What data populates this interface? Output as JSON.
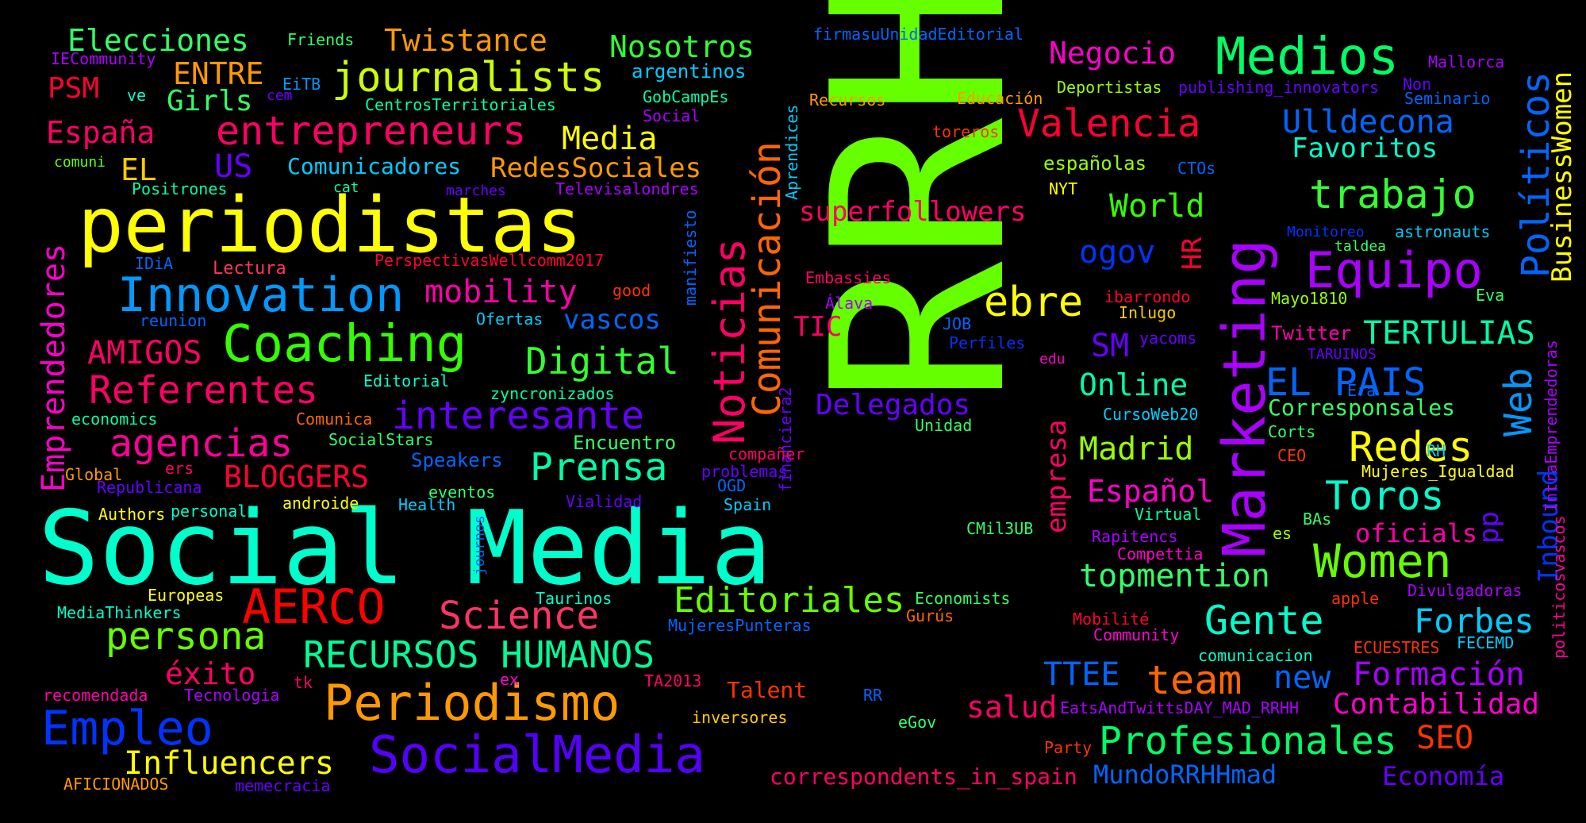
{
  "words": [
    {
      "text": "RRHH",
      "color": "#66ff00"
    },
    {
      "text": "Social Media",
      "color": "#00ffcc"
    },
    {
      "text": "periodistas",
      "color": "#ffff00"
    },
    {
      "text": "Marketing",
      "color": "#aa00ff"
    },
    {
      "text": "Medios",
      "color": "#00ff66"
    },
    {
      "text": "Coaching",
      "color": "#33ff00"
    },
    {
      "text": "Innovation",
      "color": "#0099ff"
    },
    {
      "text": "Equipo",
      "color": "#aa00ff"
    },
    {
      "text": "SocialMedia",
      "color": "#5500ff"
    },
    {
      "text": "Periodismo",
      "color": "#ff9900"
    },
    {
      "text": "Empleo",
      "color": "#0033ff"
    },
    {
      "text": "Noticias",
      "color": "#ff0066"
    },
    {
      "text": "Comunicación",
      "color": "#ff6600"
    },
    {
      "text": "journalists",
      "color": "#ccff00"
    },
    {
      "text": "entrepreneurs",
      "color": "#ff0066"
    },
    {
      "text": "Referentes",
      "color": "#ff0066"
    },
    {
      "text": "agencias",
      "color": "#ff0099"
    },
    {
      "text": "interesante",
      "color": "#6600ff"
    },
    {
      "text": "Prensa",
      "color": "#00ffaa"
    },
    {
      "text": "Digital",
      "color": "#33ff33"
    },
    {
      "text": "AERCO",
      "color": "#ff0000"
    },
    {
      "text": "Science",
      "color": "#ff3366"
    },
    {
      "text": "persona",
      "color": "#66ff00"
    },
    {
      "text": "RECURSOS HUMANOS",
      "color": "#00ff99"
    },
    {
      "text": "Editoriales",
      "color": "#66ff00"
    },
    {
      "text": "Influencers",
      "color": "#ffff00"
    },
    {
      "text": "Women",
      "color": "#66ff00"
    },
    {
      "text": "Profesionales",
      "color": "#00ff66"
    },
    {
      "text": "Gente",
      "color": "#00ffcc"
    },
    {
      "text": "Redes",
      "color": "#ffff00"
    },
    {
      "text": "Toros",
      "color": "#00ffcc"
    },
    {
      "text": "trabajo",
      "color": "#33ff33"
    },
    {
      "text": "team",
      "color": "#ff6600"
    },
    {
      "text": "Valencia",
      "color": "#ff0033"
    },
    {
      "text": "ebre",
      "color": "#ffff00"
    },
    {
      "text": "EL PAIS",
      "color": "#0066ff"
    },
    {
      "text": "Web",
      "color": "#0099ff"
    },
    {
      "text": "Políticos",
      "color": "#0066ff"
    },
    {
      "text": "Elecciones",
      "color": "#33ff66"
    },
    {
      "text": "Twistance",
      "color": "#ff9900"
    },
    {
      "text": "Nosotros",
      "color": "#33ff33"
    },
    {
      "text": "Negocio",
      "color": "#ff00cc"
    },
    {
      "text": "Media",
      "color": "#ffff00"
    },
    {
      "text": "RedesSociales",
      "color": "#ff9900"
    },
    {
      "text": "Comunicadores",
      "color": "#00ccff"
    },
    {
      "text": "España",
      "color": "#ff0066"
    },
    {
      "text": "ENTRE",
      "color": "#ff9900"
    },
    {
      "text": "Girls",
      "color": "#33ff66"
    },
    {
      "text": "PSM",
      "color": "#ff0033"
    },
    {
      "text": "US",
      "color": "#6600ff"
    },
    {
      "text": "EL",
      "color": "#ffcc00"
    },
    {
      "text": "Emprendedores",
      "color": "#ff00cc"
    },
    {
      "text": "AMIGOS",
      "color": "#ff0066"
    },
    {
      "text": "BLOGGERS",
      "color": "#ff0033"
    },
    {
      "text": "mobility",
      "color": "#ff00aa"
    },
    {
      "text": "vascos",
      "color": "#0066ff"
    },
    {
      "text": "superfollowers",
      "color": "#ff0066"
    },
    {
      "text": "World",
      "color": "#33ff00"
    },
    {
      "text": "ogov",
      "color": "#0033ff"
    },
    {
      "text": "HR",
      "color": "#ff0033"
    },
    {
      "text": "TIC",
      "color": "#ff0066"
    },
    {
      "text": "SM",
      "color": "#6600ff"
    },
    {
      "text": "Online",
      "color": "#00ffaa"
    },
    {
      "text": "Delegados",
      "color": "#6600ff"
    },
    {
      "text": "Madrid",
      "color": "#99ff00"
    },
    {
      "text": "Español",
      "color": "#ff00cc"
    },
    {
      "text": "empresa",
      "color": "#ff0066"
    },
    {
      "text": "topmention",
      "color": "#33ff66"
    },
    {
      "text": "TTEE",
      "color": "#0066ff"
    },
    {
      "text": "salud",
      "color": "#ff0066"
    },
    {
      "text": "new",
      "color": "#0066ff"
    },
    {
      "text": "Formación",
      "color": "#aa00ff"
    },
    {
      "text": "Contabilidad",
      "color": "#ff00cc"
    },
    {
      "text": "SEO",
      "color": "#ff3300"
    },
    {
      "text": "Forbes",
      "color": "#00ccff"
    },
    {
      "text": "oficials",
      "color": "#ff00aa"
    },
    {
      "text": "pp",
      "color": "#6600ff"
    },
    {
      "text": "Inbound",
      "color": "#0033ff"
    },
    {
      "text": "BusinessWomen",
      "color": "#ffff00"
    },
    {
      "text": "TERTULIAS",
      "color": "#00ffaa"
    },
    {
      "text": "Ulldecona",
      "color": "#0066ff"
    },
    {
      "text": "Favoritos",
      "color": "#00ffcc"
    },
    {
      "text": "Corresponsales",
      "color": "#33ff66"
    },
    {
      "text": "MundoRRHHmad",
      "color": "#0066ff"
    },
    {
      "text": "Economía",
      "color": "#6600ff"
    },
    {
      "text": "correspondents_in_spain",
      "color": "#ff0066"
    },
    {
      "text": "Talent",
      "color": "#ff3300"
    },
    {
      "text": "éxito",
      "color": "#ff0066"
    },
    {
      "text": "Friends",
      "color": "#33ff66"
    },
    {
      "text": "IECommunity",
      "color": "#aa00ff"
    },
    {
      "text": "EiTB",
      "color": "#0099ff"
    },
    {
      "text": "ve",
      "color": "#00ffcc"
    },
    {
      "text": "cem",
      "color": "#6600ff"
    },
    {
      "text": "CentrosTerritoriales",
      "color": "#00ffaa"
    },
    {
      "text": "argentinos",
      "color": "#00ccff"
    },
    {
      "text": "GobCampEs",
      "color": "#00ffaa"
    },
    {
      "text": "Social",
      "color": "#aa00ff"
    },
    {
      "text": "comuni",
      "color": "#66ff00"
    },
    {
      "text": "Positrones",
      "color": "#00ffaa"
    },
    {
      "text": "cat",
      "color": "#00ffaa"
    },
    {
      "text": "marches",
      "color": "#6600ff"
    },
    {
      "text": "Televisalondres",
      "color": "#aa00ff"
    },
    {
      "text": "manifiesto",
      "color": "#0066ff"
    },
    {
      "text": "Aprendices",
      "color": "#00ccff"
    },
    {
      "text": "Recursos",
      "color": "#ff9900"
    },
    {
      "text": "Educación",
      "color": "#ff9900"
    },
    {
      "text": "toreros",
      "color": "#ff3300"
    },
    {
      "text": "Deportistas",
      "color": "#99ff00"
    },
    {
      "text": "publishing_innovators",
      "color": "#6600ff"
    },
    {
      "text": "Non",
      "color": "#6600ff"
    },
    {
      "text": "Seminario",
      "color": "#0066ff"
    },
    {
      "text": "Mallorca",
      "color": "#aa00ff"
    },
    {
      "text": "firmasuUnidadEditorial",
      "color": "#0066ff"
    },
    {
      "text": "españolas",
      "color": "#99ff00"
    },
    {
      "text": "CTOs",
      "color": "#0066ff"
    },
    {
      "text": "NYT",
      "color": "#ffff00"
    },
    {
      "text": "Monitoreo",
      "color": "#0033ff"
    },
    {
      "text": "astronauts",
      "color": "#00ccff"
    },
    {
      "text": "taldea",
      "color": "#33ff66"
    },
    {
      "text": "Eva",
      "color": "#33ff66"
    },
    {
      "text": "IDiA",
      "color": "#0066ff"
    },
    {
      "text": "Lectura",
      "color": "#ff3366"
    },
    {
      "text": "PerspectivasWellcomm2017",
      "color": "#ff0033"
    },
    {
      "text": "good",
      "color": "#ff3300"
    },
    {
      "text": "reunion",
      "color": "#0066ff"
    },
    {
      "text": "Ofertas",
      "color": "#00ccff"
    },
    {
      "text": "Embassies",
      "color": "#ff0066"
    },
    {
      "text": "Álava",
      "color": "#aa00ff"
    },
    {
      "text": "JOB",
      "color": "#0066ff"
    },
    {
      "text": "Perfiles",
      "color": "#0033ff"
    },
    {
      "text": "edu",
      "color": "#ff00cc"
    },
    {
      "text": "ibarrondo",
      "color": "#ff0033"
    },
    {
      "text": "Inlugo",
      "color": "#ffcc00"
    },
    {
      "text": "yacoms",
      "color": "#6600ff"
    },
    {
      "text": "Mayo1810",
      "color": "#99ff00"
    },
    {
      "text": "Twitter",
      "color": "#ff00aa"
    },
    {
      "text": "TARUINOS",
      "color": "#6600ff"
    },
    {
      "text": "Editorial",
      "color": "#00ffcc"
    },
    {
      "text": "zyncronizados",
      "color": "#00ffaa"
    },
    {
      "text": "economics",
      "color": "#00ffaa"
    },
    {
      "text": "Comunica",
      "color": "#ff6600"
    },
    {
      "text": "SocialStars",
      "color": "#33ff66"
    },
    {
      "text": "Encuentro",
      "color": "#33ff66"
    },
    {
      "text": "Speakers",
      "color": "#0066ff"
    },
    {
      "text": "financiera2",
      "color": "#6600ff"
    },
    {
      "text": "compañer",
      "color": "#ff0066"
    },
    {
      "text": "problemas",
      "color": "#6600ff"
    },
    {
      "text": "OGD",
      "color": "#0066ff"
    },
    {
      "text": "Global",
      "color": "#ff9900"
    },
    {
      "text": "ers",
      "color": "#ff0066"
    },
    {
      "text": "Republicana",
      "color": "#6600ff"
    },
    {
      "text": "eventos",
      "color": "#33ff66"
    },
    {
      "text": "androide",
      "color": "#ffff00"
    },
    {
      "text": "Health",
      "color": "#00ccff"
    },
    {
      "text": "Vialidad",
      "color": "#6600ff"
    },
    {
      "text": "Spain",
      "color": "#00ccff"
    },
    {
      "text": "Authors",
      "color": "#ffff00"
    },
    {
      "text": "personal",
      "color": "#00ffcc"
    },
    {
      "text": "journos",
      "color": "#0066ff"
    },
    {
      "text": "CursoWeb20",
      "color": "#00ccff"
    },
    {
      "text": "Unidad",
      "color": "#33ff66"
    },
    {
      "text": "Corts",
      "color": "#33ff66"
    },
    {
      "text": "CEO",
      "color": "#ff3300"
    },
    {
      "text": "RH",
      "color": "#00ccff"
    },
    {
      "text": "Mujeres_Igualdad",
      "color": "#ffff00"
    },
    {
      "text": "IntraEmprendedoras",
      "color": "#aa00ff"
    },
    {
      "text": "politicosvascos",
      "color": "#ff0099"
    },
    {
      "text": "Era",
      "color": "#0066ff"
    },
    {
      "text": "Virtual",
      "color": "#00ffaa"
    },
    {
      "text": "BAs",
      "color": "#33ff66"
    },
    {
      "text": "es",
      "color": "#99ff00"
    },
    {
      "text": "CMil3UB",
      "color": "#33ff66"
    },
    {
      "text": "Rapitencs",
      "color": "#aa00ff"
    },
    {
      "text": "Compettia",
      "color": "#ff00cc"
    },
    {
      "text": "apple",
      "color": "#ff3300"
    },
    {
      "text": "Divulgadoras",
      "color": "#aa00ff"
    },
    {
      "text": "Economists",
      "color": "#33ff66"
    },
    {
      "text": "Gurús",
      "color": "#ff6600"
    },
    {
      "text": "Mobilité",
      "color": "#ff0033"
    },
    {
      "text": "Community",
      "color": "#ff00cc"
    },
    {
      "text": "comunicacion",
      "color": "#00ffcc"
    },
    {
      "text": "ECUESTRES",
      "color": "#ff3300"
    },
    {
      "text": "FECEMD",
      "color": "#00ccff"
    },
    {
      "text": "Europeas",
      "color": "#ffff00"
    },
    {
      "text": "Taurinos",
      "color": "#00ffcc"
    },
    {
      "text": "MediaThinkers",
      "color": "#00ffcc"
    },
    {
      "text": "MujeresPunteras",
      "color": "#0066ff"
    },
    {
      "text": "recomendada",
      "color": "#ff00aa"
    },
    {
      "text": "Tecnologia",
      "color": "#aa00ff"
    },
    {
      "text": "tk",
      "color": "#ff0066"
    },
    {
      "text": "ex",
      "color": "#ff00cc"
    },
    {
      "text": "TA2013",
      "color": "#ff0066"
    },
    {
      "text": "RR",
      "color": "#0066ff"
    },
    {
      "text": "eGov",
      "color": "#33ff66"
    },
    {
      "text": "inversores",
      "color": "#ffcc00"
    },
    {
      "text": "EatsAndTwittsDAY_MAD_RRHH",
      "color": "#aa00ff"
    },
    {
      "text": "Party",
      "color": "#ff3300"
    },
    {
      "text": "AFICIONADOS",
      "color": "#ff9900"
    },
    {
      "text": "memecracia",
      "color": "#6600ff"
    }
  ]
}
